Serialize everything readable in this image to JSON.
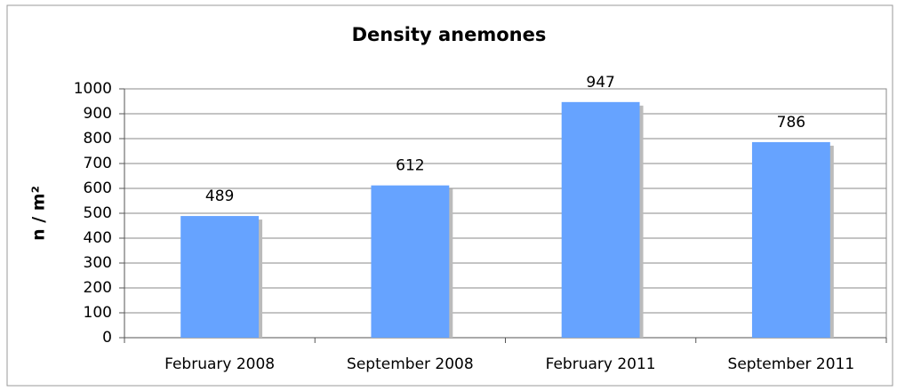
{
  "chart_data": {
    "type": "bar",
    "title": "Density anemones",
    "y_label": "n / m²",
    "categories": [
      "February 2008",
      "September 2008",
      "February 2011",
      "September 2011"
    ],
    "values": [
      489,
      612,
      947,
      786
    ],
    "color": "#66a3ff",
    "ylim": [
      0,
      1000
    ],
    "yticks": [
      0,
      100,
      200,
      300,
      400,
      500,
      600,
      700,
      800,
      900,
      1000
    ],
    "grid": true
  }
}
